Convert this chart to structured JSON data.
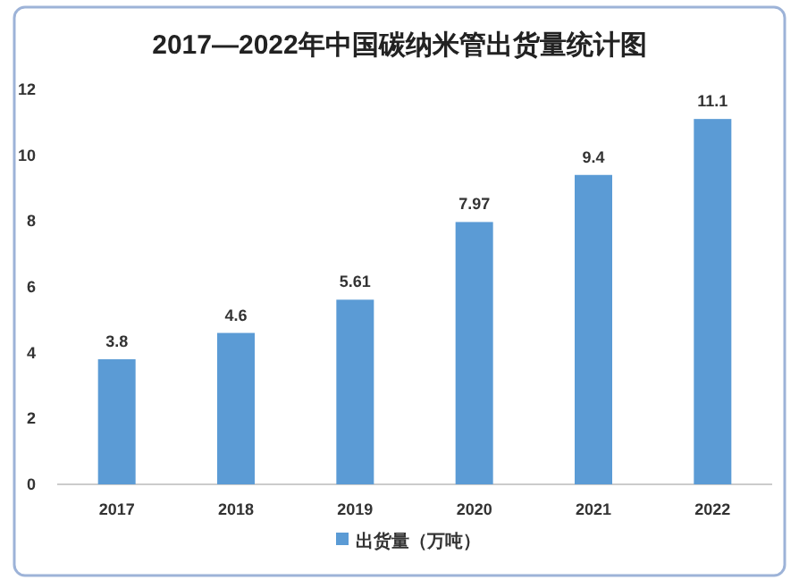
{
  "chart_data": {
    "type": "bar",
    "title": "2017—2022年中国碳纳米管出货量统计图",
    "categories": [
      "2017",
      "2018",
      "2019",
      "2020",
      "2021",
      "2022"
    ],
    "series": [
      {
        "name": "出货量（万吨）",
        "color": "#5b9bd5",
        "values": [
          3.8,
          4.6,
          5.61,
          7.97,
          9.4,
          11.1
        ]
      }
    ],
    "ylim": [
      0,
      12
    ],
    "yticks": [
      0,
      2,
      4,
      6,
      8,
      10,
      12
    ],
    "grid": false,
    "legend": "bottom",
    "data_labels": true
  }
}
